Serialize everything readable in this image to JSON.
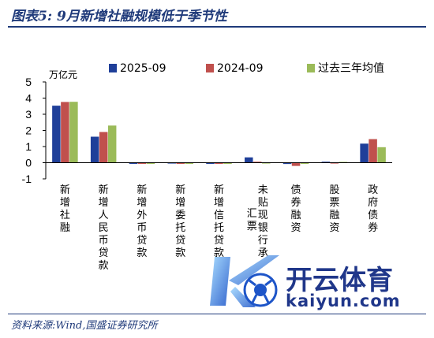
{
  "figure": {
    "title": "图表5:  9月新增社融规模低于季节性",
    "source": "资料来源:Wind,国盛证券研究所"
  },
  "chart_data": {
    "type": "bar",
    "ylabel": "万亿元",
    "ylim": [
      -1,
      5
    ],
    "yticks": [
      5,
      4,
      3,
      2,
      1,
      0,
      -1
    ],
    "grid": false,
    "legend_position": "top",
    "categories": [
      "新增社融",
      "新增人民币贷款",
      "新增外币贷款",
      "新增委托贷款",
      "新增信托贷款",
      "未贴现银行承兑汇票",
      "债券融资",
      "股票融资",
      "政府债券"
    ],
    "category_lines": [
      [
        [
          "新",
          "增",
          "社",
          "融"
        ]
      ],
      [
        [
          "新",
          "增",
          "人",
          "民",
          "币",
          "贷",
          "款"
        ]
      ],
      [
        [
          "新",
          "增",
          "外",
          "币",
          "贷",
          "款"
        ]
      ],
      [
        [
          "新",
          "增",
          "委",
          "托",
          "贷",
          "款"
        ]
      ],
      [
        [
          "新",
          "增",
          "信",
          "托",
          "贷",
          "款"
        ]
      ],
      [
        [
          "未",
          "贴",
          "现",
          "银",
          "行",
          "承"
        ],
        [
          "汇",
          "票"
        ]
      ],
      [
        [
          "债",
          "券",
          "融",
          "资"
        ]
      ],
      [
        [
          "股",
          "票",
          "融",
          "资"
        ]
      ],
      [
        [
          "政",
          "府",
          "债",
          "券"
        ]
      ]
    ],
    "series": [
      {
        "name": "2025-09",
        "color": "#1f3f99",
        "values": [
          3.53,
          1.61,
          -0.05,
          0.02,
          -0.04,
          0.33,
          -0.08,
          0.06,
          1.18
        ]
      },
      {
        "name": "2024-09",
        "color": "#c0504d",
        "values": [
          3.76,
          1.9,
          -0.04,
          0.0,
          -0.03,
          0.06,
          -0.2,
          0.02,
          1.46
        ]
      },
      {
        "name": "过去三年均值",
        "color": "#9bbb59",
        "values": [
          3.77,
          2.3,
          -0.05,
          -0.01,
          0.0,
          0.02,
          -0.03,
          0.05,
          0.96
        ]
      }
    ]
  },
  "watermark": {
    "logo_letter": "K",
    "name": "开云体育",
    "url": "kaiyun.com"
  }
}
